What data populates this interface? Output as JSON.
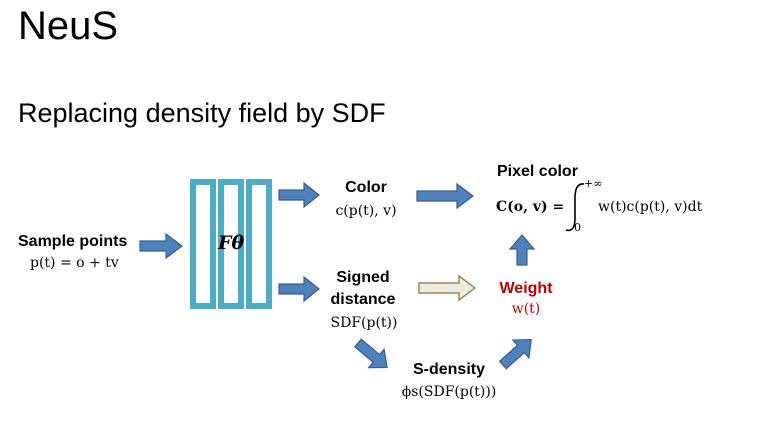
{
  "slide": {
    "title": "NeuS",
    "subtitle": "Replacing density field by SDF"
  },
  "diagram": {
    "sample_points": {
      "label": "Sample points",
      "formula": "p(t) = o + tv"
    },
    "network": {
      "label": "Fθ"
    },
    "color": {
      "label": "Color",
      "formula": "c(p(t), v)"
    },
    "signed_distance": {
      "label_line1": "Signed",
      "label_line2": "distance",
      "formula": "SDF(p(t))"
    },
    "pixel_color": {
      "label": "Pixel color",
      "formula_lhs": "C(o, v) =",
      "integral_upper": "+∞",
      "integral_lower": "0",
      "formula_rhs": "w(t)c(p(t), v)dt"
    },
    "weight": {
      "label": "Weight",
      "formula": "w(t)"
    },
    "s_density": {
      "label": "S-density",
      "formula": "ϕs(SDF(p(t)))"
    }
  },
  "colors": {
    "arrow_blue": "#4f81bd",
    "arrow_blue_stroke": "#385d8a",
    "arrow_olive": "#eeece1",
    "arrow_olive_stroke": "#948a54",
    "network_bar": "#4bacc6",
    "weight_red": "#c00000"
  }
}
